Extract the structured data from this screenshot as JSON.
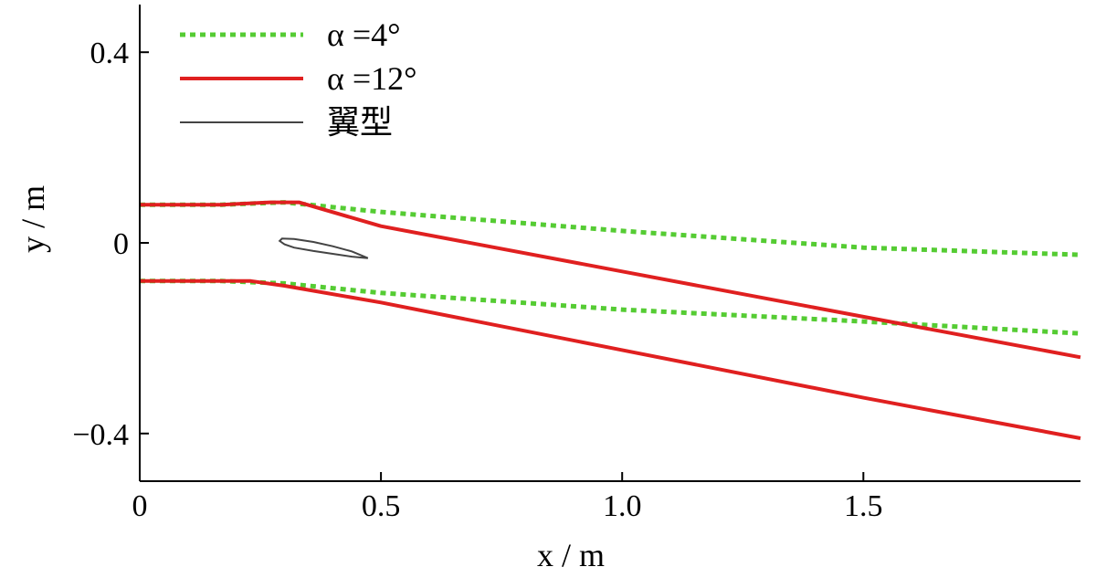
{
  "chart_data": {
    "type": "line",
    "xlabel": "x / m",
    "ylabel": "y / m",
    "xlim": [
      0,
      1.95
    ],
    "ylim": [
      -0.5,
      0.5
    ],
    "xticks": [
      {
        "value": 0,
        "label": "0"
      },
      {
        "value": 0.5,
        "label": "0.5"
      },
      {
        "value": 1.0,
        "label": "1.0"
      },
      {
        "value": 1.5,
        "label": "1.5"
      }
    ],
    "yticks": [
      {
        "value": 0.4,
        "label": "0.4"
      },
      {
        "value": 0,
        "label": "0"
      },
      {
        "value": -0.4,
        "label": "−0.4"
      }
    ],
    "grid": false,
    "legend_position": "top-left",
    "legend": [
      {
        "label": "α =4°",
        "series": "alpha4"
      },
      {
        "label": "α =12°",
        "series": "alpha12"
      },
      {
        "label": "翼型",
        "series": "airfoil"
      }
    ],
    "series": [
      {
        "key": "alpha4",
        "name": "α =4°",
        "color": "#55cc33",
        "style": "dotted",
        "lines": [
          {
            "x": [
              0,
              0.17,
              0.3,
              0.5,
              1.0,
              1.5,
              1.95
            ],
            "y": [
              0.08,
              0.08,
              0.085,
              0.065,
              0.025,
              -0.01,
              -0.025
            ]
          },
          {
            "x": [
              0,
              0.17,
              0.3,
              0.5,
              1.0,
              1.5,
              1.95
            ],
            "y": [
              -0.08,
              -0.08,
              -0.085,
              -0.105,
              -0.14,
              -0.165,
              -0.19
            ]
          }
        ]
      },
      {
        "key": "alpha12",
        "name": "α =12°",
        "color": "#e02020",
        "style": "solid",
        "lines": [
          {
            "x": [
              0,
              0.17,
              0.27,
              0.33,
              0.5,
              1.0,
              1.5,
              1.95
            ],
            "y": [
              0.08,
              0.08,
              0.085,
              0.085,
              0.035,
              -0.06,
              -0.155,
              -0.24
            ]
          },
          {
            "x": [
              0,
              0.17,
              0.23,
              0.3,
              0.5,
              1.0,
              1.5,
              1.95
            ],
            "y": [
              -0.08,
              -0.08,
              -0.08,
              -0.09,
              -0.125,
              -0.225,
              -0.325,
              -0.41
            ]
          }
        ]
      },
      {
        "key": "airfoil",
        "name": "翼型",
        "color": "#444444",
        "style": "thin",
        "closed": true,
        "x": [
          0.473,
          0.44,
          0.4,
          0.36,
          0.32,
          0.295,
          0.29,
          0.3,
          0.32,
          0.36,
          0.4,
          0.44,
          0.473
        ],
        "y": [
          -0.032,
          -0.018,
          -0.007,
          0.002,
          0.008,
          0.009,
          0.004,
          -0.003,
          -0.01,
          -0.017,
          -0.023,
          -0.029,
          -0.032
        ]
      }
    ]
  }
}
